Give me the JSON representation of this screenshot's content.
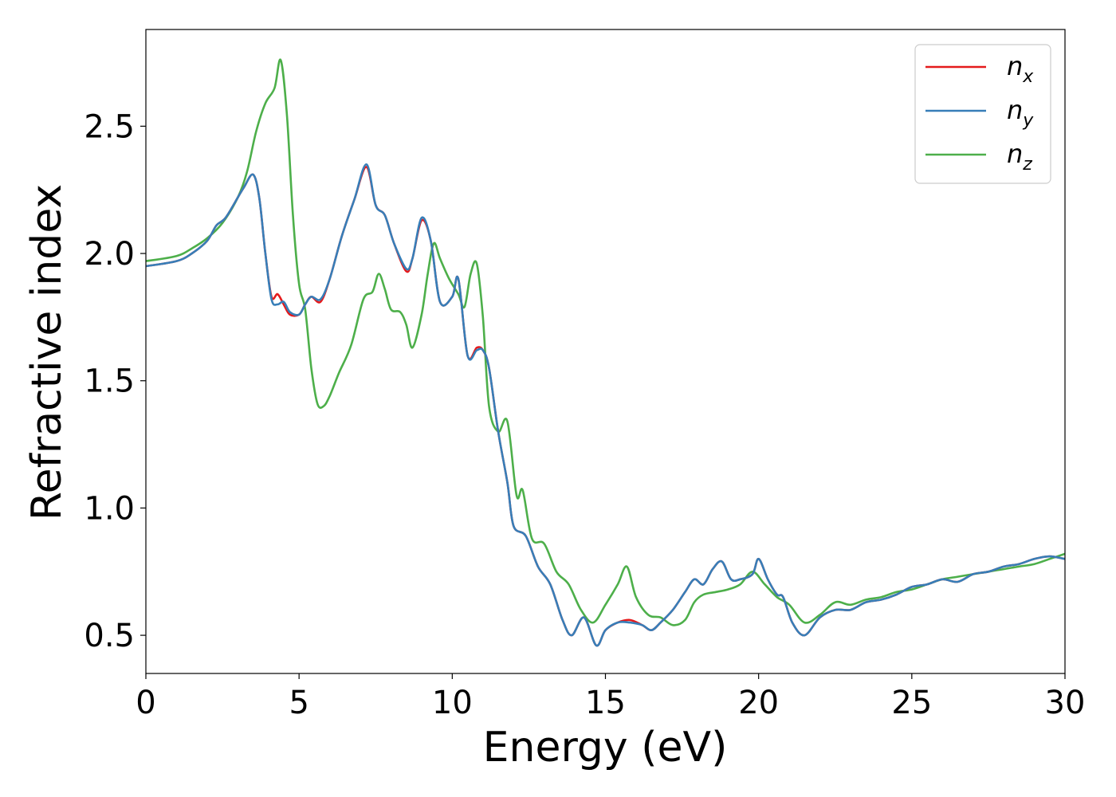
{
  "chart_data": {
    "type": "line",
    "title": "",
    "xlabel": "Energy (eV)",
    "ylabel": "Refractive index",
    "xlim": [
      0,
      30
    ],
    "ylim": [
      0.35,
      2.88
    ],
    "xticks": [
      0,
      5,
      10,
      15,
      20,
      25,
      30
    ],
    "xtick_labels": [
      "0",
      "5",
      "10",
      "15",
      "20",
      "25",
      "30"
    ],
    "yticks": [
      0.5,
      1.0,
      1.5,
      2.0,
      2.5
    ],
    "ytick_labels": [
      "0.5",
      "1.0",
      "1.5",
      "2.0",
      "2.5"
    ],
    "grid": false,
    "legend_position": "top-right",
    "series": [
      {
        "name": "n_x",
        "label_main": "n",
        "label_sub": "x",
        "color": "#e41a1c",
        "x": [
          0,
          1,
          1.5,
          2,
          2.3,
          2.6,
          3,
          3.2,
          3.5,
          3.7,
          3.9,
          4.1,
          4.3,
          4.5,
          4.7,
          5,
          5.2,
          5.4,
          5.7,
          6,
          6.4,
          6.8,
          7.2,
          7.5,
          7.8,
          8.1,
          8.5,
          8.7,
          9,
          9.3,
          9.6,
          10,
          10.2,
          10.5,
          10.8,
          11,
          11.2,
          11.5,
          11.8,
          12,
          12.4,
          12.8,
          13.2,
          13.6,
          13.9,
          14.3,
          14.7,
          15,
          15.4,
          15.8,
          16.2,
          16.5,
          16.8,
          17.2,
          17.6,
          17.9,
          18.2,
          18.5,
          18.8,
          19.1,
          19.4,
          19.8,
          20,
          20.3,
          20.6,
          20.8,
          21.1,
          21.5,
          22,
          22.5,
          23,
          23.5,
          24,
          24.5,
          25,
          25.5,
          26,
          26.5,
          27,
          27.5,
          28,
          28.5,
          29,
          29.5,
          30
        ],
        "y": [
          1.95,
          1.97,
          2.0,
          2.05,
          2.11,
          2.14,
          2.22,
          2.26,
          2.31,
          2.22,
          2.0,
          1.83,
          1.84,
          1.8,
          1.76,
          1.76,
          1.8,
          1.83,
          1.81,
          1.9,
          2.07,
          2.21,
          2.34,
          2.19,
          2.15,
          2.04,
          1.93,
          1.98,
          2.13,
          2.05,
          1.81,
          1.83,
          1.9,
          1.6,
          1.63,
          1.62,
          1.55,
          1.3,
          1.1,
          0.93,
          0.89,
          0.77,
          0.7,
          0.56,
          0.5,
          0.57,
          0.46,
          0.52,
          0.55,
          0.56,
          0.54,
          0.52,
          0.55,
          0.6,
          0.67,
          0.72,
          0.7,
          0.76,
          0.79,
          0.72,
          0.72,
          0.74,
          0.8,
          0.72,
          0.66,
          0.65,
          0.55,
          0.5,
          0.57,
          0.6,
          0.6,
          0.63,
          0.64,
          0.66,
          0.69,
          0.7,
          0.72,
          0.71,
          0.74,
          0.75,
          0.77,
          0.78,
          0.8,
          0.81,
          0.8
        ]
      },
      {
        "name": "n_y",
        "label_main": "n",
        "label_sub": "y",
        "color": "#377eb8",
        "x": [
          0,
          1,
          1.5,
          2,
          2.3,
          2.6,
          3,
          3.2,
          3.5,
          3.7,
          3.9,
          4.1,
          4.3,
          4.5,
          4.7,
          5,
          5.2,
          5.4,
          5.7,
          6,
          6.4,
          6.8,
          7.2,
          7.5,
          7.8,
          8.1,
          8.5,
          8.7,
          9,
          9.3,
          9.6,
          10,
          10.2,
          10.5,
          10.8,
          11,
          11.2,
          11.5,
          11.8,
          12,
          12.4,
          12.8,
          13.2,
          13.6,
          13.9,
          14.3,
          14.7,
          15,
          15.4,
          15.8,
          16.2,
          16.5,
          16.8,
          17.2,
          17.6,
          17.9,
          18.2,
          18.5,
          18.8,
          19.1,
          19.4,
          19.8,
          20,
          20.3,
          20.6,
          20.8,
          21.1,
          21.5,
          22,
          22.5,
          23,
          23.5,
          24,
          24.5,
          25,
          25.5,
          26,
          26.5,
          27,
          27.5,
          28,
          28.5,
          29,
          29.5,
          30
        ],
        "y": [
          1.95,
          1.97,
          2.0,
          2.05,
          2.11,
          2.14,
          2.22,
          2.26,
          2.31,
          2.22,
          2.0,
          1.82,
          1.8,
          1.81,
          1.77,
          1.76,
          1.8,
          1.83,
          1.82,
          1.9,
          2.07,
          2.21,
          2.35,
          2.19,
          2.15,
          2.04,
          1.94,
          1.98,
          2.14,
          2.05,
          1.81,
          1.83,
          1.9,
          1.6,
          1.62,
          1.62,
          1.55,
          1.3,
          1.1,
          0.93,
          0.89,
          0.77,
          0.7,
          0.56,
          0.5,
          0.57,
          0.46,
          0.52,
          0.55,
          0.55,
          0.54,
          0.52,
          0.55,
          0.6,
          0.67,
          0.72,
          0.7,
          0.76,
          0.79,
          0.72,
          0.72,
          0.74,
          0.8,
          0.72,
          0.66,
          0.65,
          0.55,
          0.5,
          0.57,
          0.6,
          0.6,
          0.63,
          0.64,
          0.66,
          0.69,
          0.7,
          0.72,
          0.71,
          0.74,
          0.75,
          0.77,
          0.78,
          0.8,
          0.81,
          0.8
        ]
      },
      {
        "name": "n_z",
        "label_main": "n",
        "label_sub": "z",
        "color": "#4daf4a",
        "x": [
          0,
          1,
          1.5,
          2,
          2.5,
          3,
          3.3,
          3.6,
          3.9,
          4.2,
          4.4,
          4.6,
          4.8,
          5,
          5.2,
          5.4,
          5.6,
          5.8,
          6,
          6.3,
          6.7,
          7.1,
          7.4,
          7.6,
          7.8,
          8,
          8.3,
          8.5,
          8.7,
          9,
          9.2,
          9.4,
          9.6,
          9.9,
          10.2,
          10.4,
          10.6,
          10.8,
          11,
          11.2,
          11.5,
          11.8,
          12.1,
          12.3,
          12.6,
          13,
          13.4,
          13.8,
          14.2,
          14.6,
          15,
          15.4,
          15.7,
          16,
          16.4,
          16.8,
          17.2,
          17.6,
          17.9,
          18.2,
          18.6,
          19,
          19.4,
          19.8,
          20.2,
          20.6,
          21,
          21.5,
          22,
          22.5,
          23,
          23.5,
          24,
          24.5,
          25,
          25.5,
          26,
          26.5,
          27,
          27.5,
          28,
          28.5,
          29,
          29.5,
          30
        ],
        "y": [
          1.97,
          1.99,
          2.02,
          2.06,
          2.12,
          2.22,
          2.32,
          2.48,
          2.59,
          2.65,
          2.76,
          2.55,
          2.15,
          1.88,
          1.78,
          1.55,
          1.41,
          1.4,
          1.44,
          1.53,
          1.64,
          1.82,
          1.85,
          1.92,
          1.86,
          1.78,
          1.77,
          1.72,
          1.63,
          1.76,
          1.92,
          2.04,
          1.98,
          1.9,
          1.84,
          1.79,
          1.92,
          1.96,
          1.75,
          1.4,
          1.3,
          1.34,
          1.05,
          1.07,
          0.88,
          0.86,
          0.75,
          0.7,
          0.6,
          0.55,
          0.62,
          0.7,
          0.77,
          0.65,
          0.58,
          0.57,
          0.54,
          0.56,
          0.63,
          0.66,
          0.67,
          0.68,
          0.7,
          0.75,
          0.7,
          0.65,
          0.62,
          0.55,
          0.58,
          0.63,
          0.62,
          0.64,
          0.65,
          0.67,
          0.68,
          0.7,
          0.72,
          0.73,
          0.74,
          0.75,
          0.76,
          0.77,
          0.78,
          0.8,
          0.82
        ]
      }
    ]
  }
}
